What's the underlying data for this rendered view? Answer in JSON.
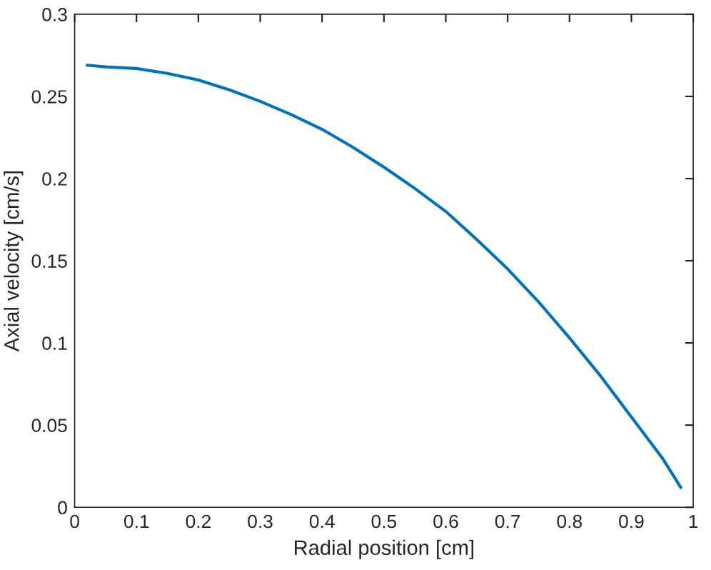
{
  "chart_data": {
    "type": "line",
    "xlabel": "Radial position [cm]",
    "ylabel": "Axial velocity [cm/s]",
    "x": [
      0.02,
      0.05,
      0.1,
      0.15,
      0.2,
      0.25,
      0.3,
      0.35,
      0.4,
      0.45,
      0.5,
      0.55,
      0.6,
      0.65,
      0.7,
      0.75,
      0.8,
      0.85,
      0.9,
      0.95,
      0.98
    ],
    "series": [
      {
        "color": "#0072bd",
        "values": [
          0.269,
          0.268,
          0.267,
          0.264,
          0.26,
          0.254,
          0.247,
          0.239,
          0.23,
          0.219,
          0.207,
          0.194,
          0.18,
          0.163,
          0.145,
          0.125,
          0.103,
          0.08,
          0.055,
          0.03,
          0.012
        ]
      }
    ],
    "xlim": [
      0,
      1
    ],
    "xticks": [
      0,
      0.1,
      0.2,
      0.3,
      0.4,
      0.5,
      0.6,
      0.7,
      0.8,
      0.9,
      1
    ],
    "ylim": [
      0,
      0.3
    ],
    "yticks": [
      0,
      0.05,
      0.1,
      0.15,
      0.2,
      0.25,
      0.3
    ],
    "grid": false,
    "legend": false,
    "marker": "none",
    "line_style": "solid"
  }
}
